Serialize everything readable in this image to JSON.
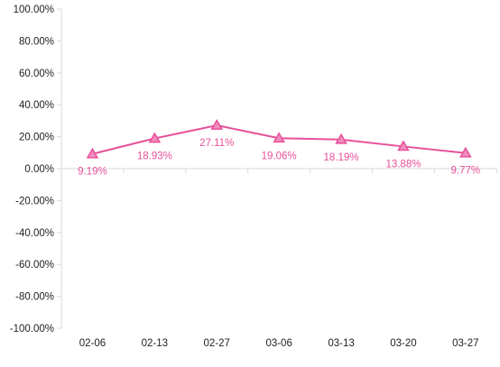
{
  "chart_data": {
    "type": "line",
    "title": "",
    "xlabel": "",
    "ylabel": "",
    "categories": [
      "02-06",
      "02-13",
      "02-27",
      "03-06",
      "03-13",
      "03-20",
      "03-27"
    ],
    "series": [
      {
        "values": [
          9.19,
          18.93,
          27.11,
          19.06,
          18.19,
          13.88,
          9.77
        ],
        "labels": [
          "9.19%",
          "18.93%",
          "27.11%",
          "19.06%",
          "18.19%",
          "13.88%",
          "9.77%"
        ],
        "color": "#e8509a",
        "marker": "triangle"
      }
    ],
    "ylim": [
      -100,
      100
    ],
    "yticks": [
      100,
      80,
      60,
      40,
      20,
      0,
      -20,
      -40,
      -60,
      -80,
      -100
    ],
    "ytick_labels": [
      "100.00%",
      "80.00%",
      "60.00%",
      "40.00%",
      "20.00%",
      "0.00%",
      "-20.00%",
      "-40.00%",
      "-60.00%",
      "-80.00%",
      "-100.00%"
    ],
    "grid": false,
    "legend": "none",
    "colors": {
      "axis": "#d9d9d9",
      "text": "#222222",
      "marker_fill": "#f08cbe"
    }
  }
}
